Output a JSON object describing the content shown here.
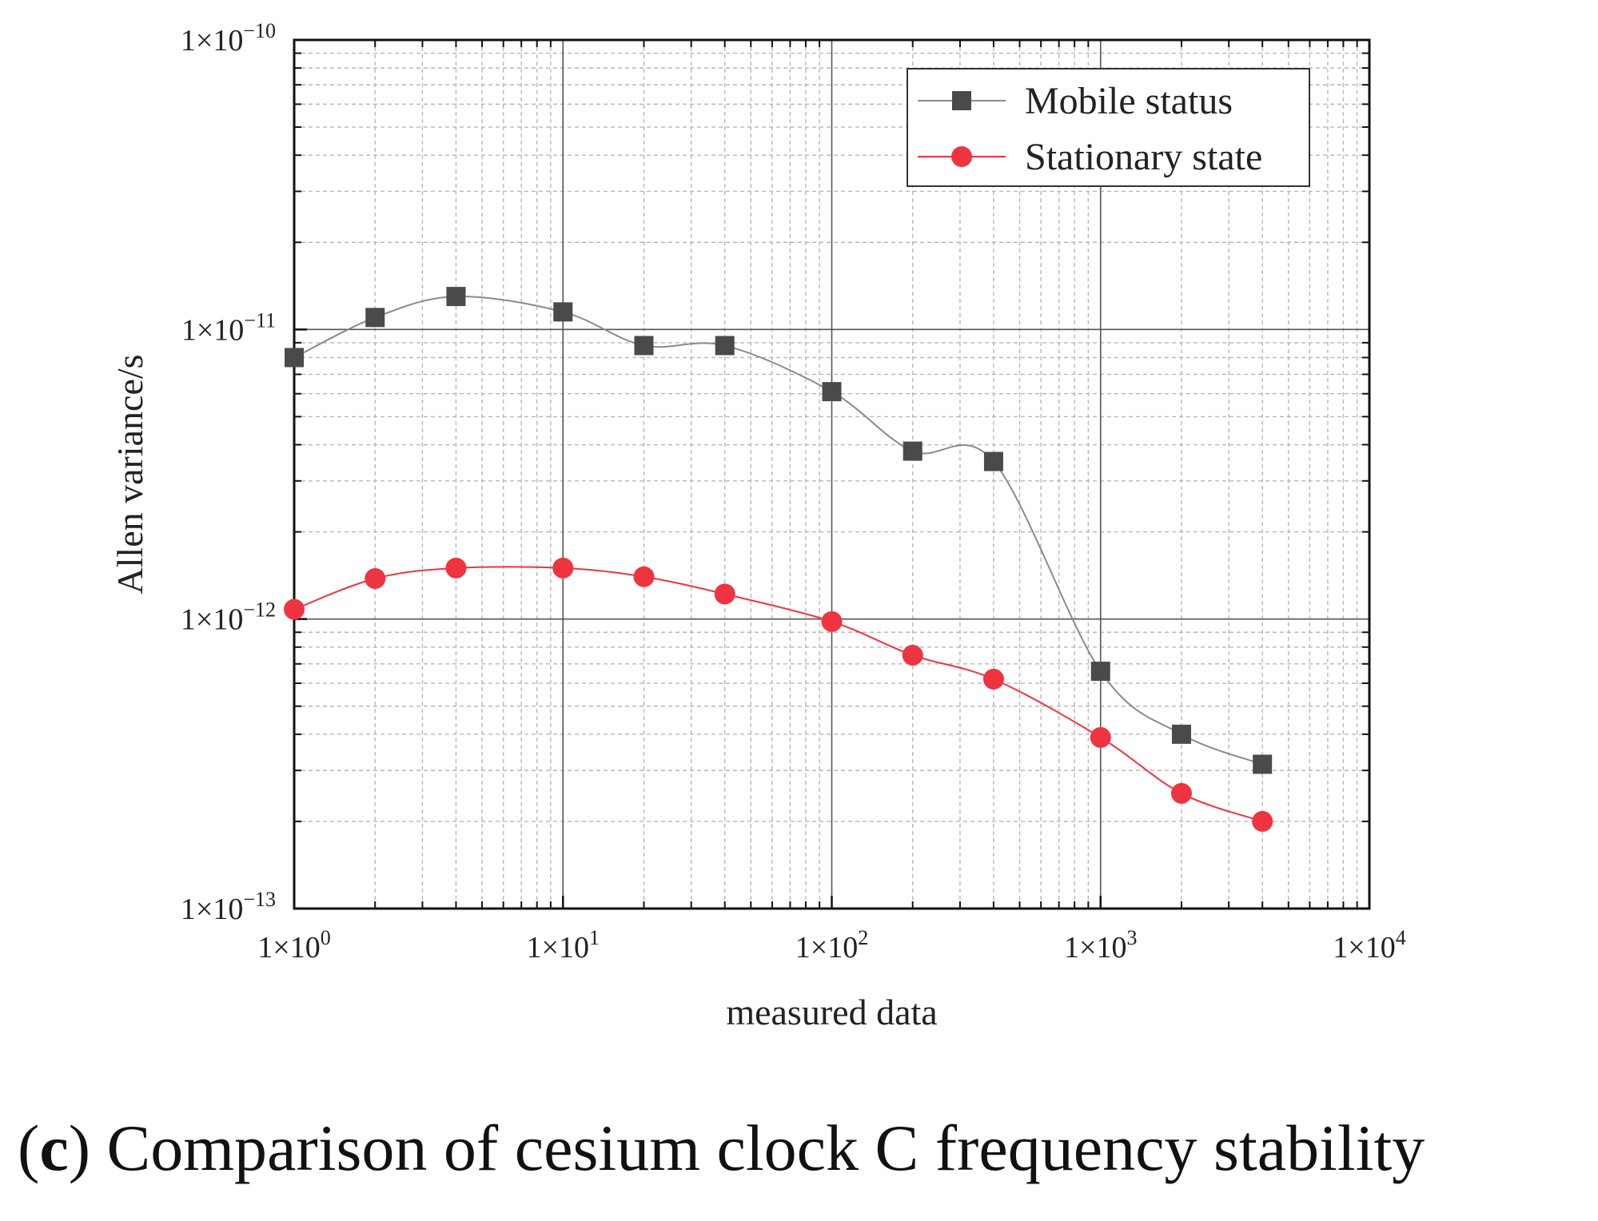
{
  "chart_data": {
    "type": "line",
    "x_scale": "log",
    "y_scale": "log",
    "xlabel": "measured data",
    "ylabel": "Allen variance/s",
    "xlim": [
      1,
      10000
    ],
    "ylim": [
      1e-13,
      1e-10
    ],
    "grid": true,
    "legend_position": "top-right",
    "x_ticks": [
      {
        "value": 1,
        "base": "1×10",
        "exp": "0"
      },
      {
        "value": 10,
        "base": "1×10",
        "exp": "1"
      },
      {
        "value": 100,
        "base": "1×10",
        "exp": "2"
      },
      {
        "value": 1000,
        "base": "1×10",
        "exp": "3"
      },
      {
        "value": 10000,
        "base": "1×10",
        "exp": "4"
      }
    ],
    "y_ticks": [
      {
        "value": 1e-10,
        "base": "1×10",
        "exp": "−10"
      },
      {
        "value": 1e-11,
        "base": "1×10",
        "exp": "−11"
      },
      {
        "value": 1e-12,
        "base": "1×10",
        "exp": "−12"
      },
      {
        "value": 1e-13,
        "base": "1×10",
        "exp": "−13"
      }
    ],
    "series": [
      {
        "name": "Mobile status",
        "color": "#4a4a4a",
        "line_color": "#8a8a8a",
        "marker": "square",
        "x": [
          1,
          2,
          4,
          10,
          20,
          40,
          100,
          200,
          400,
          1000,
          2000,
          4000
        ],
        "values": [
          8e-12,
          1.1e-11,
          1.3e-11,
          1.15e-11,
          8.8e-12,
          8.8e-12,
          6.1e-12,
          3.8e-12,
          3.5e-12,
          6.6e-13,
          4e-13,
          3.15e-13
        ]
      },
      {
        "name": "Stationary state",
        "color": "#ee3440",
        "line_color": "#ee3440",
        "marker": "circle",
        "x": [
          1,
          2,
          4,
          10,
          20,
          40,
          100,
          200,
          400,
          1000,
          2000,
          4000
        ],
        "values": [
          1.08e-12,
          1.38e-12,
          1.5e-12,
          1.5e-12,
          1.4e-12,
          1.22e-12,
          9.8e-13,
          7.5e-13,
          6.2e-13,
          3.9e-13,
          2.5e-13,
          2e-13
        ]
      }
    ]
  },
  "caption": {
    "label": "c",
    "text": "Comparison of cesium clock C frequency stability"
  }
}
